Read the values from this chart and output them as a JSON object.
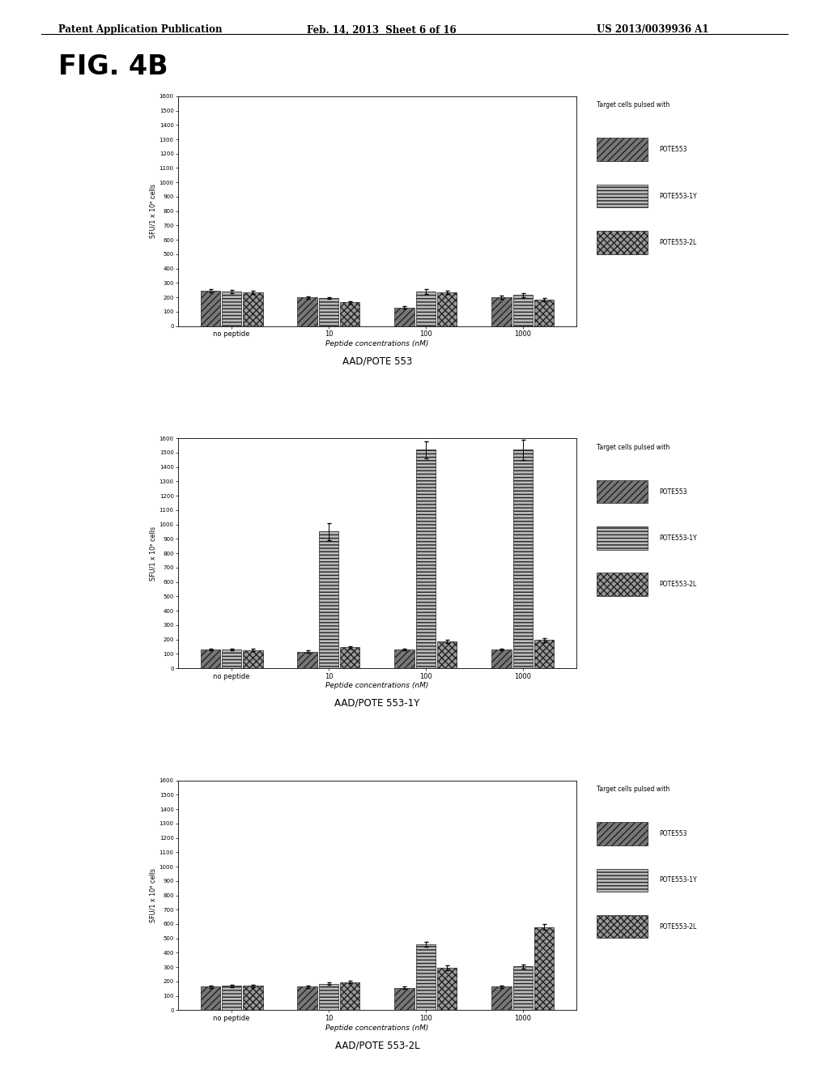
{
  "header_left": "Patent Application Publication",
  "header_mid": "Feb. 14, 2013  Sheet 6 of 16",
  "header_right": "US 2013/0039936 A1",
  "fig_label": "FIG. 4B",
  "background_color": "#ffffff",
  "charts": [
    {
      "title": "AAD/POTE 553",
      "ylabel": "SFU/1 x 10⁶ cells",
      "xlabel": "Peptide concentrations (nM)",
      "legend_title": "Target cells pulsed with",
      "legend_labels": [
        "POTE553",
        "POTE553-1Y",
        "POTE553-2L"
      ],
      "xtick_labels": [
        "no peptide",
        "10",
        "100",
        "1000"
      ],
      "ylim": [
        0,
        1600
      ],
      "yticks": [
        0,
        100,
        200,
        300,
        400,
        500,
        600,
        700,
        800,
        900,
        1000,
        1100,
        1200,
        1300,
        1400,
        1500,
        1600
      ],
      "groups": [
        {
          "bars": [
            245,
            240,
            235
          ],
          "errors": [
            12,
            12,
            12
          ]
        },
        {
          "bars": [
            200,
            195,
            165
          ],
          "errors": [
            8,
            8,
            8
          ]
        },
        {
          "bars": [
            130,
            240,
            235
          ],
          "errors": [
            8,
            15,
            12
          ]
        },
        {
          "bars": [
            200,
            215,
            185
          ],
          "errors": [
            10,
            12,
            10
          ]
        }
      ]
    },
    {
      "title": "AAD/POTE 553-1Y",
      "ylabel": "SFU/1 x 10⁶ cells",
      "xlabel": "Peptide concentrations (nM)",
      "legend_title": "Target cells pulsed with",
      "legend_labels": [
        "POTE553",
        "POTE553-1Y",
        "POTE553-2L"
      ],
      "xtick_labels": [
        "no peptide",
        "10",
        "100",
        "1000"
      ],
      "ylim": [
        0,
        1600
      ],
      "yticks": [
        0,
        100,
        200,
        300,
        400,
        500,
        600,
        700,
        800,
        900,
        1000,
        1100,
        1200,
        1300,
        1400,
        1500,
        1600
      ],
      "groups": [
        {
          "bars": [
            130,
            130,
            125
          ],
          "errors": [
            8,
            8,
            8
          ]
        },
        {
          "bars": [
            115,
            950,
            145
          ],
          "errors": [
            8,
            60,
            8
          ]
        },
        {
          "bars": [
            130,
            1520,
            185
          ],
          "errors": [
            8,
            60,
            12
          ]
        },
        {
          "bars": [
            130,
            1520,
            195
          ],
          "errors": [
            8,
            70,
            12
          ]
        }
      ]
    },
    {
      "title": "AAD/POTE 553-2L",
      "ylabel": "SFU/1 x 10⁶ cells",
      "xlabel": "Peptide concentrations (nM)",
      "legend_title": "Target cells pulsed with",
      "legend_labels": [
        "POTE553",
        "POTE553-1Y",
        "POTE553-2L"
      ],
      "xtick_labels": [
        "no peptide",
        "10",
        "100",
        "1000"
      ],
      "ylim": [
        0,
        1600
      ],
      "yticks": [
        0,
        100,
        200,
        300,
        400,
        500,
        600,
        700,
        800,
        900,
        1000,
        1100,
        1200,
        1300,
        1400,
        1500,
        1600
      ],
      "groups": [
        {
          "bars": [
            165,
            170,
            170
          ],
          "errors": [
            8,
            8,
            8
          ]
        },
        {
          "bars": [
            165,
            185,
            195
          ],
          "errors": [
            8,
            10,
            8
          ]
        },
        {
          "bars": [
            155,
            460,
            295
          ],
          "errors": [
            8,
            18,
            15
          ]
        },
        {
          "bars": [
            165,
            305,
            580
          ],
          "errors": [
            8,
            15,
            22
          ]
        }
      ]
    }
  ],
  "hatch_patterns": [
    "////",
    "----",
    "xxxx"
  ],
  "bar_facecolors": [
    "#777777",
    "#bbbbbb",
    "#999999"
  ],
  "bar_edge_color": "#222222",
  "bar_width": 0.22,
  "legend_hatch_facecolors": [
    "#666666",
    "#aaaaaa",
    "#888888"
  ]
}
